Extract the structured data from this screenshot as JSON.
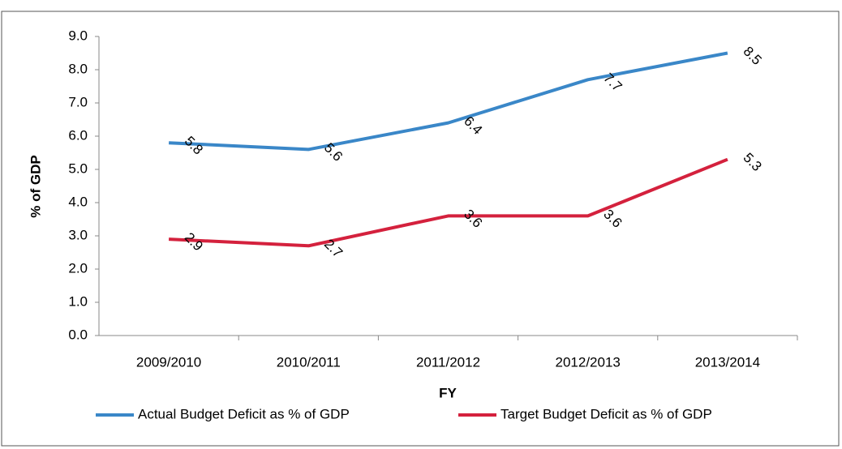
{
  "chart_data": {
    "type": "line",
    "categories": [
      "2009/2010",
      "2010/2011",
      "2011/2012",
      "2012/2013",
      "2013/2014"
    ],
    "series": [
      {
        "name": "Actual Budget Deficit as % of GDP",
        "color": "#3a87c8",
        "values": [
          5.8,
          5.6,
          6.4,
          7.7,
          8.5
        ]
      },
      {
        "name": "Target Budget Deficit as % of GDP",
        "color": "#d4213d",
        "values": [
          2.9,
          2.7,
          3.6,
          3.6,
          5.3
        ]
      }
    ],
    "x_label": "FY",
    "y_label": "% of GDP",
    "ylim": [
      0,
      9
    ],
    "yticks": [
      {
        "value": 0,
        "label": "0.0"
      },
      {
        "value": 1,
        "label": "1.0"
      },
      {
        "value": 2,
        "label": "2.0"
      },
      {
        "value": 3,
        "label": "3.0"
      },
      {
        "value": 4,
        "label": "4.0"
      },
      {
        "value": 5,
        "label": "5.0"
      },
      {
        "value": 6,
        "label": "6.0"
      },
      {
        "value": 7,
        "label": "7.0"
      },
      {
        "value": 8,
        "label": "8.0"
      },
      {
        "value": 9,
        "label": "9.0"
      }
    ],
    "legend": "bottom",
    "grid": false
  }
}
